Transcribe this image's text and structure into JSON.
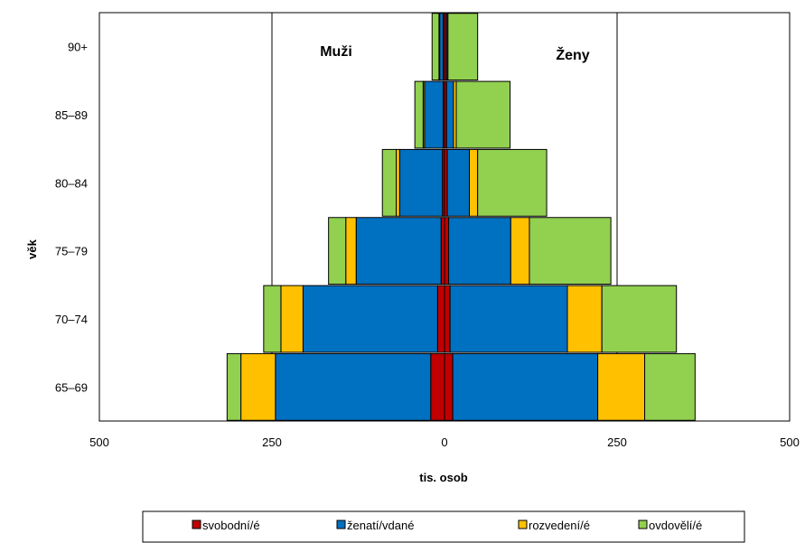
{
  "chart_data": {
    "type": "bar",
    "orientation": "horizontal",
    "stacked": true,
    "diverging": true,
    "ylabel": "věk",
    "xlabel": "tis. osob",
    "left_label": "Muži",
    "right_label": "Ženy",
    "xlim": [
      -500,
      500
    ],
    "x_ticks": [
      -500,
      -250,
      0,
      250,
      500
    ],
    "x_tick_labels": [
      "500",
      "250",
      "0",
      "250",
      "500"
    ],
    "gridlines": [
      -250,
      250
    ],
    "legend_position": "bottom",
    "categories": [
      "65–69",
      "70–74",
      "75–79",
      "80–84",
      "85–89",
      "90+"
    ],
    "series": [
      {
        "name": "svobodní/é",
        "color": "#c00000",
        "male": [
          20,
          10,
          5,
          3,
          2,
          2
        ],
        "female": [
          12,
          8,
          6,
          4,
          3,
          3
        ]
      },
      {
        "name": "ženatí/vdané",
        "color": "#0070c0",
        "male": [
          225,
          195,
          123,
          62,
          27,
          5
        ],
        "female": [
          210,
          170,
          90,
          32,
          10,
          2
        ]
      },
      {
        "name": "rozvedení/é",
        "color": "#ffc000",
        "male": [
          50,
          32,
          15,
          5,
          2,
          1
        ],
        "female": [
          68,
          50,
          27,
          12,
          4,
          0
        ]
      },
      {
        "name": "ovdovělí/é",
        "color": "#92d050",
        "male": [
          20,
          25,
          25,
          20,
          12,
          10
        ],
        "female": [
          73,
          108,
          118,
          100,
          78,
          43
        ]
      }
    ]
  }
}
